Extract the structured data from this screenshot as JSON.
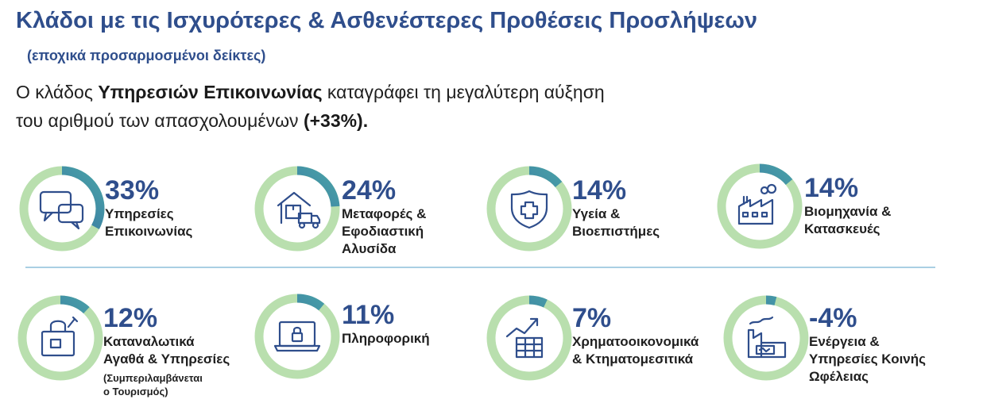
{
  "header": {
    "title": "Κλάδοι με τις Ισχυρότερες & Ασθενέστερες Προθέσεις Προσλήψεων",
    "subtitle": "(εποχικά προσαρμοσμένοι δείκτες)"
  },
  "lead": {
    "part1": "Ο κλάδος ",
    "bold1": "Υπηρεσιών Επικοινωνίας",
    "part2": " καταγράφει τη μεγαλύτερη αύξηση",
    "line2": "του αριθμού των απασχολουμένων ",
    "bold2": "(+33%)."
  },
  "colors": {
    "title": "#2f4e8c",
    "ring_track": "#b9dfae",
    "ring_arc_start": "#2c5a9e",
    "ring_arc_end": "#4aa3a8",
    "icon": "#2f4e8c",
    "divider": "#a9cfe3"
  },
  "sectors": [
    {
      "value": 33,
      "pct": "33%",
      "lines": [
        "Υπηρεσίες",
        "Επικοινωνίας"
      ],
      "icon": "chat-bubbles-icon"
    },
    {
      "value": 24,
      "pct": "24%",
      "lines": [
        "Μεταφορές &",
        "Εφοδιαστική",
        "Αλυσίδα"
      ],
      "icon": "warehouse-truck-icon"
    },
    {
      "value": 14,
      "pct": "14%",
      "lines": [
        "Υγεία &",
        "Βιοεπιστήμες"
      ],
      "icon": "health-shield-icon"
    },
    {
      "value": 14,
      "pct": "14%",
      "lines": [
        "Βιομηχανία &",
        "Κατασκευές"
      ],
      "icon": "factory-icon"
    },
    {
      "value": 12,
      "pct": "12%",
      "lines": [
        "Καταναλωτικά",
        "Αγαθά & Υπηρεσίες"
      ],
      "note": [
        "(Συμπεριλαμβάνεται",
        "ο Τουρισμός)"
      ],
      "icon": "shopping-bag-icon"
    },
    {
      "value": 11,
      "pct": "11%",
      "lines": [
        "Πληροφορική"
      ],
      "icon": "laptop-lock-icon"
    },
    {
      "value": 7,
      "pct": "7%",
      "lines": [
        "Χρηματοοικονομικά",
        "& Κτηματομεσιτικά"
      ],
      "icon": "finance-chart-icon"
    },
    {
      "value": -4,
      "pct": "-4%",
      "lines": [
        "Ενέργεια &",
        "Υπηρεσίες Κοινής",
        "Ωφέλειας"
      ],
      "icon": "energy-plant-icon"
    }
  ]
}
